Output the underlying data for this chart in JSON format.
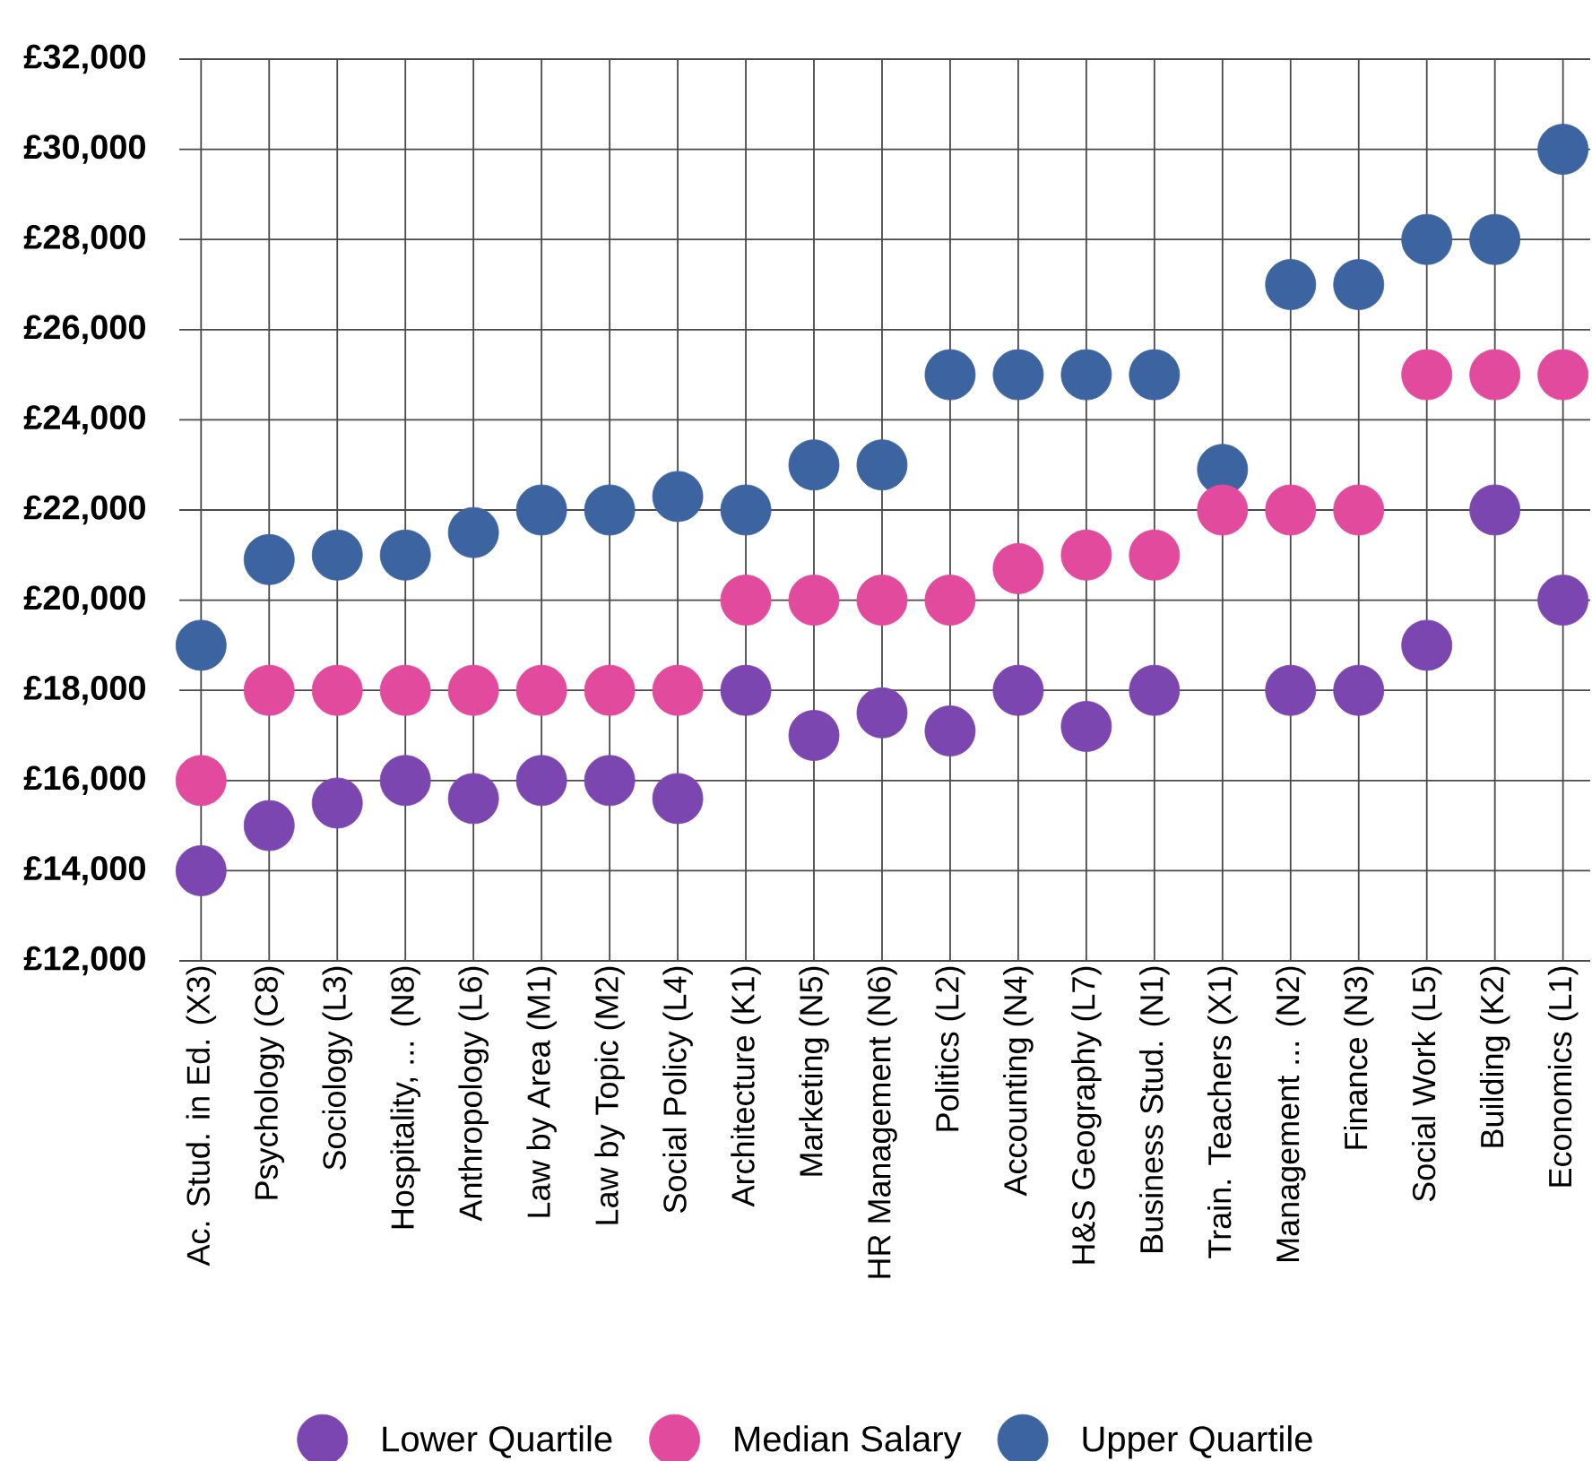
{
  "chart_data": {
    "type": "scatter",
    "categories": [
      "Ac. Stud. in Ed. (X3)",
      "Psychology (C8)",
      "Sociology (L3)",
      "Hospitality, ... (N8)",
      "Anthropology (L6)",
      "Law by Area (M1)",
      "Law by Topic (M2)",
      "Social Policy (L4)",
      "Architecture (K1)",
      "Marketing (N5)",
      "HR Management (N6)",
      "Politics (L2)",
      "Accounting (N4)",
      "H&S Geography (L7)",
      "Business Stud. (N1)",
      "Train. Teachers (X1)",
      "Management ... (N2)",
      "Finance (N3)",
      "Social Work (L5)",
      "Building (K2)",
      "Economics (L1)"
    ],
    "series": [
      {
        "name": "Lower Quartile",
        "color": "#7c46b0",
        "values": [
          14000,
          15000,
          15500,
          16000,
          15600,
          16000,
          16000,
          15600,
          18000,
          17000,
          17500,
          17100,
          18000,
          17200,
          18000,
          null,
          18000,
          18000,
          19000,
          22000,
          20000
        ]
      },
      {
        "name": "Median Salary",
        "color": "#e24a9d",
        "values": [
          16000,
          18000,
          18000,
          18000,
          18000,
          18000,
          18000,
          18000,
          20000,
          20000,
          20000,
          20000,
          20700,
          21000,
          21000,
          22000,
          22000,
          22000,
          25000,
          25000,
          25000
        ]
      },
      {
        "name": "Upper Quartile",
        "color": "#3c64a0",
        "values": [
          19000,
          20900,
          21000,
          21000,
          21500,
          22000,
          22000,
          22300,
          22000,
          23000,
          23000,
          25000,
          25000,
          25000,
          25000,
          22900,
          27000,
          27000,
          28000,
          28000,
          30000
        ]
      }
    ],
    "ylim": [
      12000,
      32000
    ],
    "yticks": [
      {
        "value": 12000,
        "label": "£12,000"
      },
      {
        "value": 14000,
        "label": "£14,000"
      },
      {
        "value": 16000,
        "label": "£16,000"
      },
      {
        "value": 18000,
        "label": "£18,000"
      },
      {
        "value": 20000,
        "label": "£20,000"
      },
      {
        "value": 22000,
        "label": "£22,000"
      },
      {
        "value": 24000,
        "label": "£24,000"
      },
      {
        "value": 26000,
        "label": "£26,000"
      },
      {
        "value": 28000,
        "label": "£28,000"
      },
      {
        "value": 30000,
        "label": "£30,000"
      },
      {
        "value": 32000,
        "label": "£32,000"
      }
    ],
    "grid": true,
    "legend": "bottom",
    "marker": "circle"
  }
}
